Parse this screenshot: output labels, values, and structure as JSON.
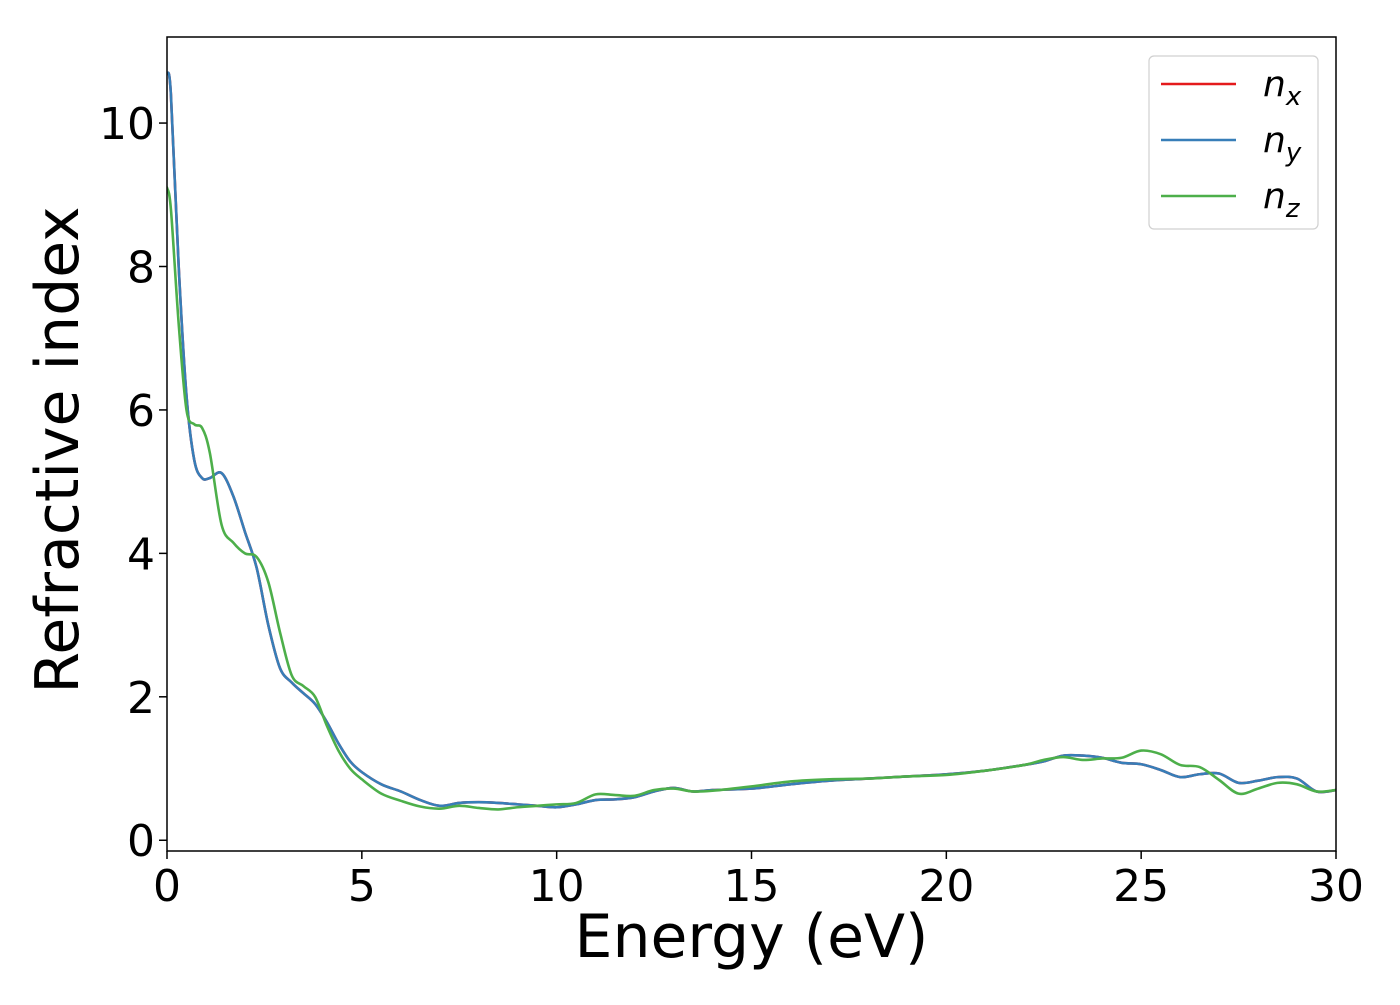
{
  "chart_data": {
    "type": "line",
    "title": "",
    "xlabel": "Energy (eV)",
    "ylabel": "Refractive index",
    "xlim": [
      0,
      30
    ],
    "ylim": [
      -0.15,
      11.2
    ],
    "xticks": [
      0,
      5,
      10,
      15,
      20,
      25,
      30
    ],
    "yticks": [
      0,
      2,
      4,
      6,
      8,
      10
    ],
    "grid": false,
    "legend_position": "top-right",
    "series": [
      {
        "name": "n",
        "subscript": "x",
        "color": "#e41a1c",
        "x": [
          0,
          0.1,
          0.3,
          0.5,
          0.7,
          0.9,
          1.1,
          1.4,
          1.7,
          2.0,
          2.3,
          2.6,
          2.9,
          3.2,
          3.5,
          3.8,
          4.1,
          4.4,
          4.7,
          5.0,
          5.5,
          6.0,
          6.5,
          7.0,
          7.5,
          8.0,
          8.5,
          9.0,
          9.5,
          10.0,
          10.5,
          11.0,
          11.5,
          12.0,
          12.5,
          13.0,
          13.5,
          14.0,
          15.0,
          16.0,
          17.0,
          18.0,
          19.0,
          20.0,
          21.0,
          22.0,
          22.5,
          23.0,
          23.5,
          24.0,
          24.5,
          25.0,
          25.5,
          26.0,
          26.5,
          27.0,
          27.5,
          28.0,
          28.5,
          29.0,
          29.5,
          30.0
        ],
        "y": [
          10.7,
          10.4,
          8.0,
          6.2,
          5.3,
          5.05,
          5.05,
          5.12,
          4.8,
          4.3,
          3.8,
          3.0,
          2.4,
          2.2,
          2.05,
          1.9,
          1.65,
          1.35,
          1.1,
          0.95,
          0.78,
          0.68,
          0.56,
          0.48,
          0.52,
          0.53,
          0.52,
          0.5,
          0.48,
          0.46,
          0.5,
          0.56,
          0.57,
          0.6,
          0.68,
          0.73,
          0.68,
          0.7,
          0.72,
          0.78,
          0.83,
          0.86,
          0.89,
          0.92,
          0.97,
          1.05,
          1.1,
          1.18,
          1.18,
          1.15,
          1.08,
          1.06,
          0.98,
          0.88,
          0.92,
          0.93,
          0.8,
          0.83,
          0.88,
          0.86,
          0.68,
          0.7
        ]
      },
      {
        "name": "n",
        "subscript": "y",
        "color": "#377eb8",
        "x": [
          0,
          0.1,
          0.3,
          0.5,
          0.7,
          0.9,
          1.1,
          1.4,
          1.7,
          2.0,
          2.3,
          2.6,
          2.9,
          3.2,
          3.5,
          3.8,
          4.1,
          4.4,
          4.7,
          5.0,
          5.5,
          6.0,
          6.5,
          7.0,
          7.5,
          8.0,
          8.5,
          9.0,
          9.5,
          10.0,
          10.5,
          11.0,
          11.5,
          12.0,
          12.5,
          13.0,
          13.5,
          14.0,
          15.0,
          16.0,
          17.0,
          18.0,
          19.0,
          20.0,
          21.0,
          22.0,
          22.5,
          23.0,
          23.5,
          24.0,
          24.5,
          25.0,
          25.5,
          26.0,
          26.5,
          27.0,
          27.5,
          28.0,
          28.5,
          29.0,
          29.5,
          30.0
        ],
        "y": [
          10.7,
          10.4,
          8.0,
          6.2,
          5.3,
          5.05,
          5.05,
          5.12,
          4.8,
          4.3,
          3.8,
          3.0,
          2.4,
          2.2,
          2.05,
          1.9,
          1.65,
          1.35,
          1.1,
          0.95,
          0.78,
          0.68,
          0.56,
          0.48,
          0.52,
          0.53,
          0.52,
          0.5,
          0.48,
          0.46,
          0.5,
          0.56,
          0.57,
          0.6,
          0.68,
          0.73,
          0.68,
          0.7,
          0.72,
          0.78,
          0.83,
          0.86,
          0.89,
          0.92,
          0.97,
          1.05,
          1.1,
          1.18,
          1.18,
          1.15,
          1.08,
          1.06,
          0.98,
          0.88,
          0.92,
          0.93,
          0.8,
          0.83,
          0.88,
          0.86,
          0.68,
          0.7
        ]
      },
      {
        "name": "n",
        "subscript": "z",
        "color": "#4daf4a",
        "x": [
          0,
          0.1,
          0.3,
          0.5,
          0.7,
          0.9,
          1.1,
          1.4,
          1.7,
          2.0,
          2.3,
          2.6,
          2.9,
          3.2,
          3.5,
          3.8,
          4.1,
          4.4,
          4.7,
          5.0,
          5.5,
          6.0,
          6.5,
          7.0,
          7.5,
          8.0,
          8.5,
          9.0,
          9.5,
          10.0,
          10.5,
          11.0,
          11.5,
          12.0,
          12.5,
          13.0,
          13.5,
          14.0,
          15.0,
          16.0,
          17.0,
          18.0,
          19.0,
          20.0,
          21.0,
          22.0,
          22.5,
          23.0,
          23.5,
          24.0,
          24.5,
          25.0,
          25.5,
          26.0,
          26.5,
          27.0,
          27.5,
          28.0,
          28.5,
          29.0,
          29.5,
          30.0
        ],
        "y": [
          9.1,
          8.8,
          7.2,
          6.0,
          5.8,
          5.75,
          5.4,
          4.4,
          4.15,
          4.0,
          3.95,
          3.6,
          2.9,
          2.3,
          2.15,
          2.0,
          1.6,
          1.25,
          1.0,
          0.85,
          0.65,
          0.55,
          0.47,
          0.44,
          0.48,
          0.45,
          0.43,
          0.46,
          0.48,
          0.5,
          0.52,
          0.64,
          0.63,
          0.62,
          0.7,
          0.72,
          0.68,
          0.69,
          0.75,
          0.82,
          0.85,
          0.86,
          0.89,
          0.91,
          0.97,
          1.05,
          1.12,
          1.16,
          1.12,
          1.14,
          1.15,
          1.25,
          1.2,
          1.05,
          1.02,
          0.84,
          0.65,
          0.72,
          0.8,
          0.78,
          0.68,
          0.7
        ]
      }
    ]
  }
}
